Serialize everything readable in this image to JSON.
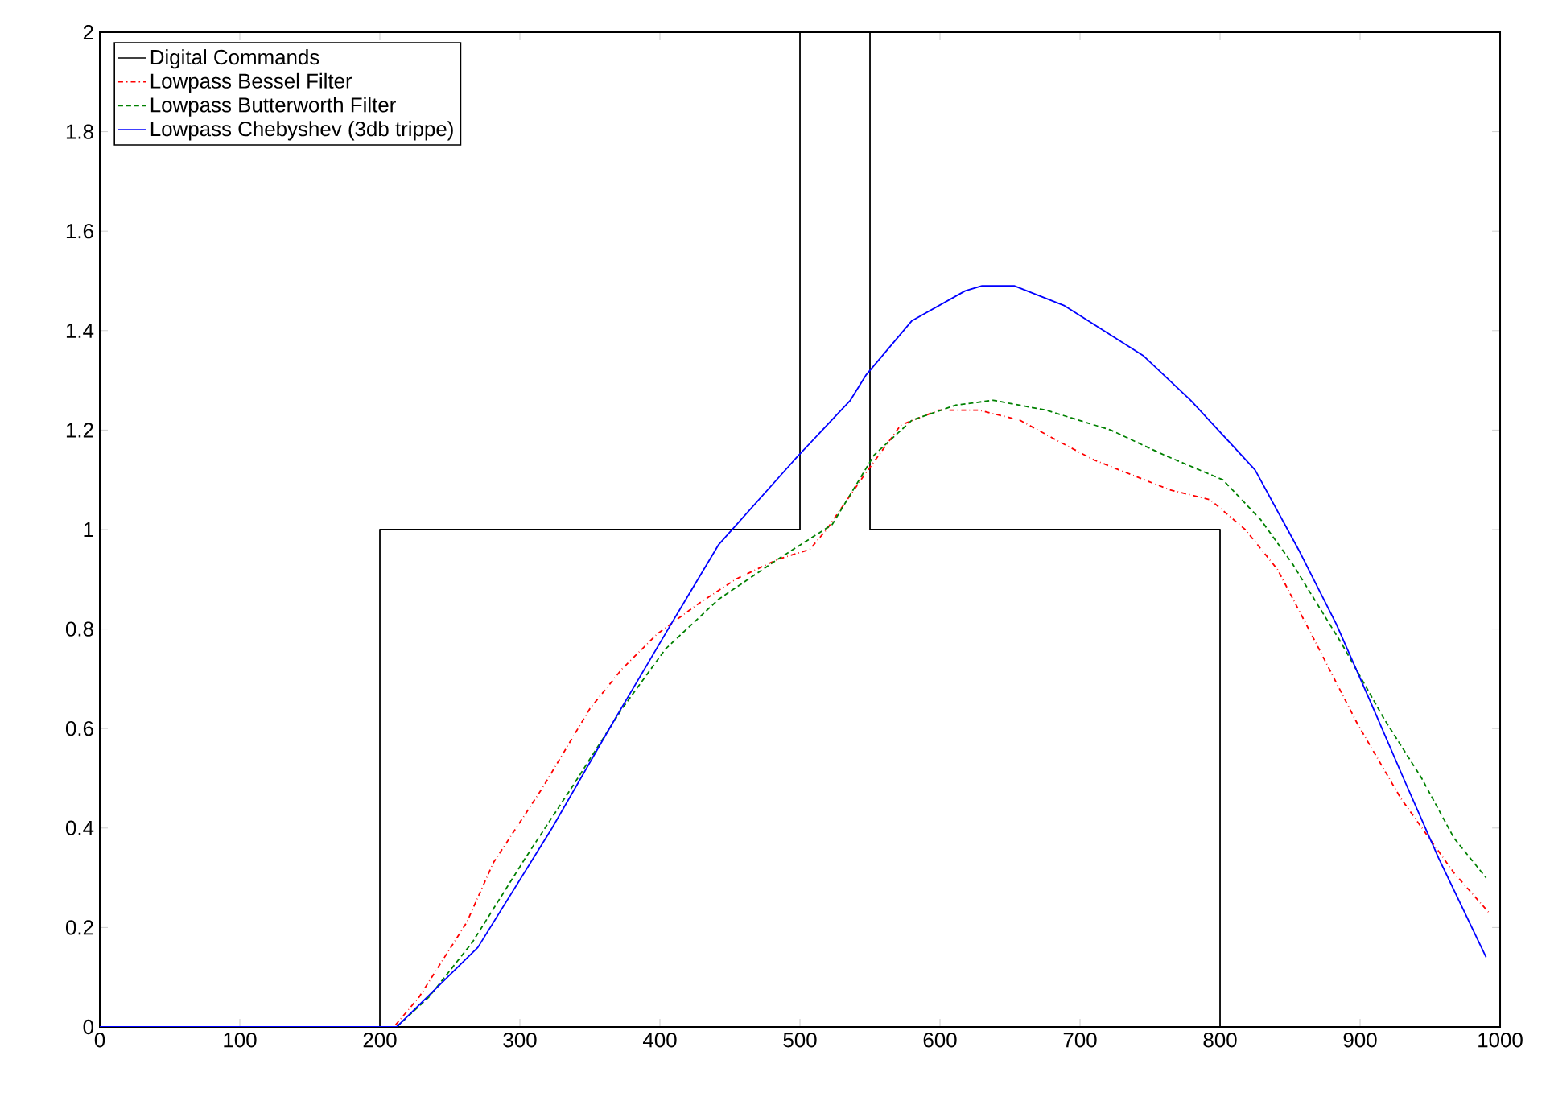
{
  "chart_data": {
    "type": "line",
    "xlim": [
      0,
      1000
    ],
    "ylim": [
      0,
      2
    ],
    "xticks": [
      0,
      100,
      200,
      300,
      400,
      500,
      600,
      700,
      800,
      900,
      1000
    ],
    "yticks": [
      0,
      0.2,
      0.4,
      0.6,
      0.8,
      1,
      1.2,
      1.4,
      1.6,
      1.8,
      2
    ],
    "legend": "top left",
    "series": [
      {
        "name": "Digital Commands",
        "color": "#000000",
        "line_style": "solid",
        "x": [
          0,
          200,
          200,
          500,
          500,
          550,
          550,
          800,
          800,
          1000
        ],
        "values": [
          0,
          0,
          1,
          1,
          2,
          2,
          1,
          1,
          0,
          0
        ]
      },
      {
        "name": "Lowpass Bessel Filter",
        "color": "#ff0000",
        "line_style": "dashdot",
        "x": [
          0,
          210,
          228,
          262,
          281,
          316,
          350,
          373,
          398,
          427,
          454,
          484,
          507,
          519,
          546,
          572,
          599,
          628,
          657,
          683,
          710,
          764,
          793,
          818,
          841,
          867,
          898,
          929,
          967,
          992
        ],
        "values": [
          0,
          0,
          0.06,
          0.21,
          0.33,
          0.48,
          0.64,
          0.72,
          0.79,
          0.85,
          0.9,
          0.94,
          0.96,
          1.0,
          1.11,
          1.21,
          1.24,
          1.24,
          1.22,
          1.18,
          1.14,
          1.08,
          1.06,
          1.0,
          0.92,
          0.78,
          0.61,
          0.46,
          0.31,
          0.23
        ]
      },
      {
        "name": "Lowpass Butterworth Filter",
        "color": "#008000",
        "line_style": "dotted",
        "x": [
          0,
          212,
          235,
          266,
          304,
          339,
          373,
          404,
          442,
          484,
          523,
          553,
          580,
          611,
          638,
          676,
          722,
          760,
          802,
          829,
          852,
          887,
          917,
          944,
          967,
          990
        ],
        "values": [
          0,
          0,
          0.06,
          0.17,
          0.34,
          0.49,
          0.64,
          0.76,
          0.86,
          0.94,
          1.01,
          1.15,
          1.22,
          1.25,
          1.26,
          1.24,
          1.2,
          1.15,
          1.1,
          1.02,
          0.93,
          0.77,
          0.62,
          0.5,
          0.38,
          0.3
        ]
      },
      {
        "name": "Lowpass Chebyshev (3db trippe)",
        "color": "#0000ff",
        "line_style": "solid",
        "x": [
          0,
          212,
          270,
          323,
          366,
          408,
          442,
          496,
          536,
          547,
          580,
          618,
          630,
          653,
          689,
          745,
          779,
          825,
          856,
          883,
          908,
          931,
          956,
          990
        ],
        "values": [
          0,
          0,
          0.16,
          0.4,
          0.61,
          0.81,
          0.97,
          1.14,
          1.26,
          1.31,
          1.42,
          1.48,
          1.49,
          1.49,
          1.45,
          1.35,
          1.26,
          1.12,
          0.96,
          0.81,
          0.65,
          0.5,
          0.34,
          0.14
        ]
      }
    ]
  }
}
